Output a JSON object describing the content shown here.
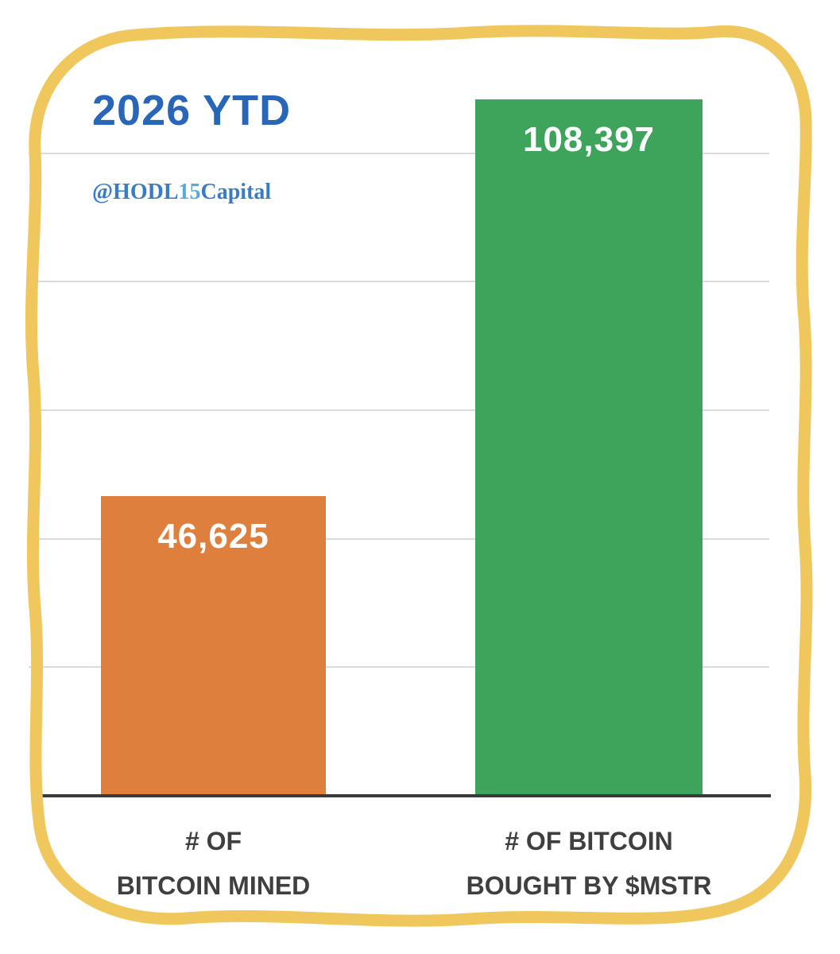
{
  "header": {
    "title": "2026 YTD",
    "handle": {
      "prefix": "@HODL",
      "mid": "15",
      "suffix": "Capital"
    }
  },
  "chart_data": {
    "type": "bar",
    "title": "2026 YTD",
    "categories": [
      "# OF BITCOIN MINED",
      "# OF BITCOIN BOUGHT BY $MSTR"
    ],
    "values": [
      46625,
      108397
    ],
    "value_labels": [
      "46,625",
      "108,397"
    ],
    "xlabel": "",
    "ylabel": "",
    "ylim": [
      0,
      120000
    ],
    "gridlines": [
      20000,
      40000,
      60000,
      80000,
      100000
    ],
    "grid": true,
    "legend": "none",
    "bar_colors": [
      "#DF7F3E",
      "#3FA45B"
    ],
    "annotation": "@HODL15Capital"
  },
  "bars": [
    {
      "value_label": "46,625",
      "label_line1": "# OF",
      "label_line2": "BITCOIN MINED"
    },
    {
      "value_label": "108,397",
      "label_line1": "# OF BITCOIN",
      "label_line2": "BOUGHT BY $MSTR"
    }
  ],
  "colors": {
    "border_yellow": "#F0C75C",
    "title_blue": "#2966B8",
    "handle_blue": "#3A7CC4",
    "handle_light_blue": "#58AADC",
    "bar_orange": "#DF7F3E",
    "bar_green": "#3FA45B",
    "gridline_gray": "#DBDBDB",
    "axis_text": "#3F3F3F"
  }
}
